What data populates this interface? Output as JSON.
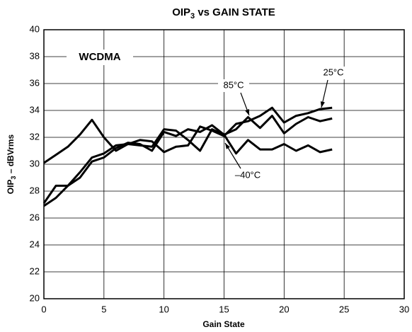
{
  "chart_data": {
    "type": "line",
    "title": [
      "OIP",
      "3",
      " vs GAIN STATE"
    ],
    "xlabel": "Gain State",
    "ylabel": [
      "OIP",
      "3",
      " – dBVrms"
    ],
    "annotations": [
      "WCDMA"
    ],
    "x": [
      0,
      1,
      2,
      3,
      4,
      5,
      6,
      7,
      8,
      9,
      10,
      11,
      12,
      13,
      14,
      15,
      16,
      17,
      18,
      19,
      20,
      21,
      22,
      23,
      24
    ],
    "series": [
      {
        "name": "–40°C",
        "color": "#000000",
        "values": [
          30.1,
          30.7,
          31.3,
          32.2,
          33.3,
          32.0,
          31.0,
          31.5,
          31.4,
          31.3,
          32.6,
          32.5,
          31.8,
          31.0,
          32.6,
          32.2,
          30.8,
          31.8,
          31.1,
          31.1,
          31.5,
          31.0,
          31.4,
          30.9,
          31.1
        ]
      },
      {
        "name": "85°C",
        "color": "#000000",
        "values": [
          27.1,
          28.4,
          28.4,
          29.0,
          30.2,
          30.5,
          31.2,
          31.6,
          31.5,
          31.0,
          32.4,
          32.1,
          32.6,
          32.4,
          32.9,
          32.2,
          32.6,
          33.5,
          32.7,
          33.6,
          32.3,
          33.0,
          33.5,
          33.2,
          33.4
        ]
      },
      {
        "name": "25°C",
        "color": "#000000",
        "values": [
          26.9,
          27.5,
          28.4,
          29.4,
          30.5,
          30.8,
          31.4,
          31.5,
          31.8,
          31.7,
          30.9,
          31.3,
          31.4,
          32.8,
          32.5,
          32.1,
          33.0,
          33.2,
          33.6,
          34.2,
          33.1,
          33.6,
          33.8,
          34.1,
          34.2
        ]
      }
    ],
    "xlim": [
      0,
      30
    ],
    "xticks": [
      0,
      5,
      10,
      15,
      20,
      25,
      30
    ],
    "ylim": [
      20,
      40
    ],
    "yticks": [
      20,
      22,
      24,
      26,
      28,
      30,
      32,
      34,
      36,
      38,
      40
    ],
    "grid": true
  }
}
